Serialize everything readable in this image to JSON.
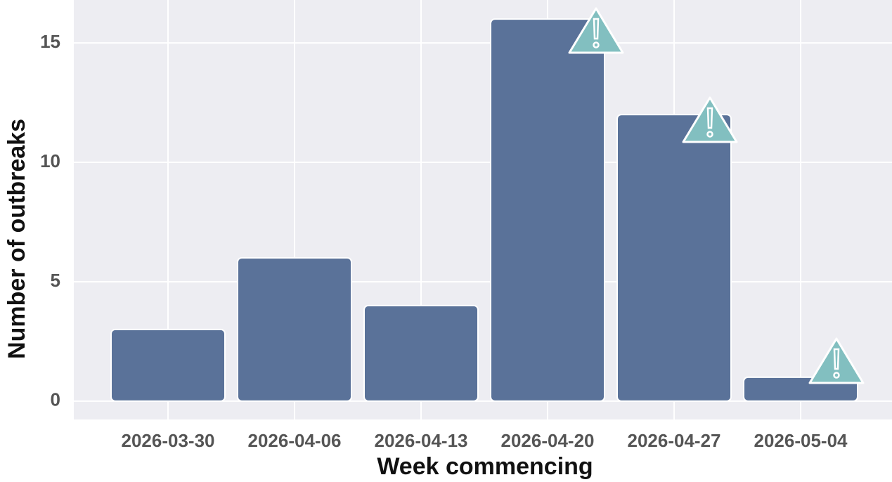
{
  "chart_data": {
    "type": "bar",
    "x_label": "Week commencing",
    "y_label": "Number of outbreaks",
    "categories": [
      "2026-03-30",
      "2026-04-06",
      "2026-04-13",
      "2026-04-20",
      "2026-04-27",
      "2026-05-04"
    ],
    "values": [
      3,
      6,
      4,
      16,
      12,
      1
    ],
    "color": "#5a7299",
    "ylim": [
      -0.77,
      16.8
    ],
    "yticks": [
      0,
      5,
      10,
      15
    ],
    "grid": true
  }
}
